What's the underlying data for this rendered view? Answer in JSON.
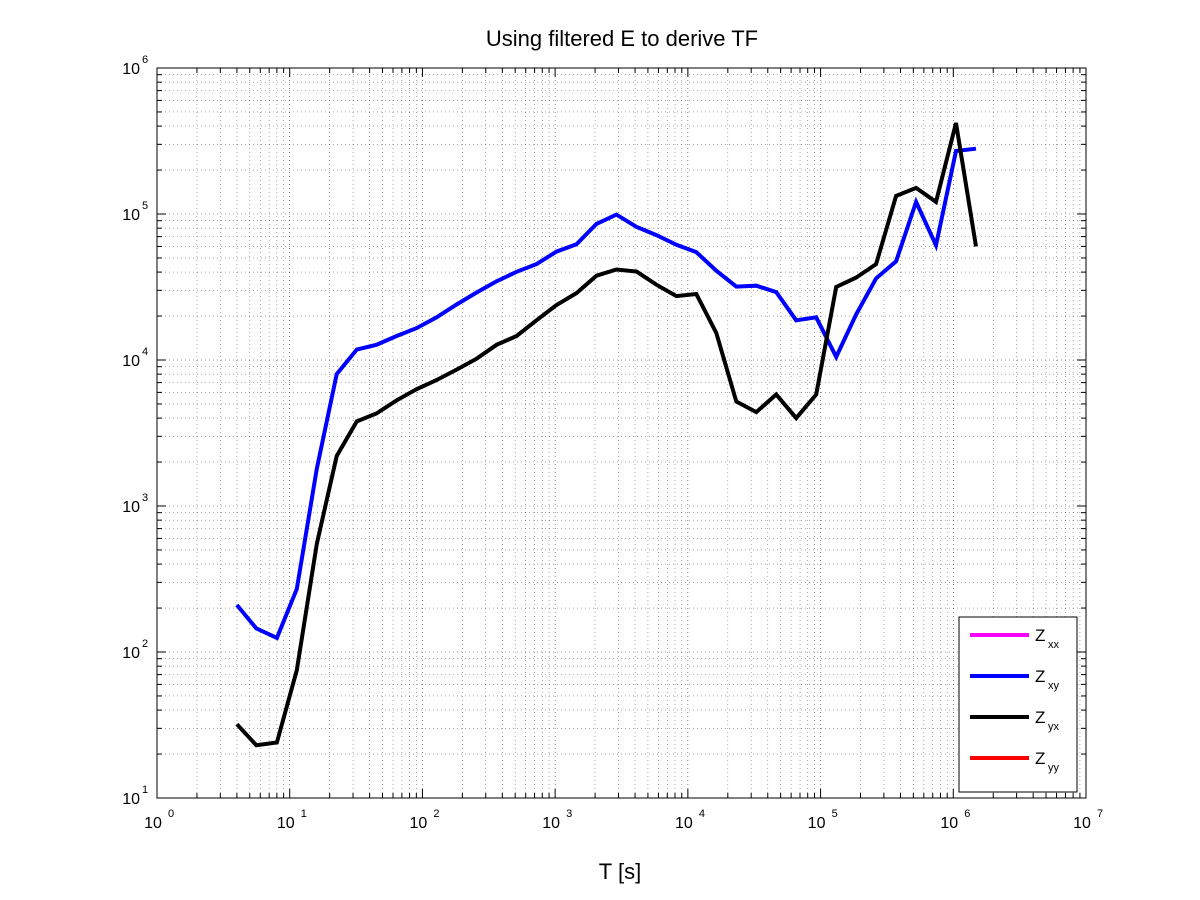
{
  "chart_data": {
    "type": "line",
    "title": "Using filtered E to derive TF",
    "xlabel": "T [s]",
    "ylabel": "",
    "xscale": "log",
    "yscale": "log",
    "xlim": [
      1,
      10000000
    ],
    "ylim": [
      10,
      1000000
    ],
    "grid": true,
    "legend_position": "bottom-right",
    "x_ticks": [
      {
        "base": "10",
        "exp": "0"
      },
      {
        "base": "10",
        "exp": "1"
      },
      {
        "base": "10",
        "exp": "2"
      },
      {
        "base": "10",
        "exp": "3"
      },
      {
        "base": "10",
        "exp": "4"
      },
      {
        "base": "10",
        "exp": "5"
      },
      {
        "base": "10",
        "exp": "6"
      },
      {
        "base": "10",
        "exp": "7"
      }
    ],
    "y_ticks": [
      {
        "base": "10",
        "exp": "1"
      },
      {
        "base": "10",
        "exp": "2"
      },
      {
        "base": "10",
        "exp": "3"
      },
      {
        "base": "10",
        "exp": "4"
      },
      {
        "base": "10",
        "exp": "5"
      },
      {
        "base": "10",
        "exp": "6"
      }
    ],
    "series": [
      {
        "name": "Z",
        "sub": "xx",
        "color": "#ff00ff",
        "x": [],
        "y": []
      },
      {
        "name": "Z",
        "sub": "xy",
        "color": "#0000ff",
        "x": [
          4,
          5.6,
          8,
          11.3,
          16,
          22.6,
          32,
          45,
          64,
          90,
          128,
          181,
          256,
          362,
          512,
          724,
          1024,
          1448,
          2048,
          2896,
          4096,
          5792,
          8192,
          11585,
          16384,
          23170,
          32768,
          46341,
          65536,
          92682,
          131072,
          185364,
          262144,
          370728,
          524288,
          741455,
          1048576,
          1482910
        ],
        "y": [
          210,
          145,
          125,
          270,
          1800,
          8000,
          11800,
          12700,
          14600,
          16500,
          19600,
          24000,
          29000,
          34600,
          40200,
          45400,
          55300,
          62000,
          85600,
          99100,
          81700,
          71700,
          61500,
          54800,
          40900,
          31800,
          32300,
          29200,
          18700,
          19600,
          10500,
          20500,
          36200,
          47400,
          121000,
          61000,
          270000,
          280000
        ]
      },
      {
        "name": "Z",
        "sub": "yx",
        "color": "#000000",
        "x": [
          4,
          5.6,
          8,
          11.3,
          16,
          22.6,
          32,
          45,
          64,
          90,
          128,
          181,
          256,
          362,
          512,
          724,
          1024,
          1448,
          2048,
          2896,
          4096,
          5792,
          8192,
          11585,
          16384,
          23170,
          32768,
          46341,
          65536,
          92682,
          131072,
          185364,
          262144,
          370728,
          524288,
          741455,
          1048576,
          1482910
        ],
        "y": [
          32,
          23,
          24,
          75,
          550,
          2200,
          3800,
          4300,
          5300,
          6300,
          7300,
          8600,
          10200,
          12700,
          14600,
          18700,
          23800,
          28700,
          37800,
          41700,
          40400,
          32800,
          27400,
          28300,
          15300,
          5200,
          4400,
          5800,
          4000,
          5800,
          31600,
          36700,
          45400,
          133000,
          151000,
          121000,
          420000,
          60000
        ]
      },
      {
        "name": "Z",
        "sub": "yy",
        "color": "#ff0000",
        "x": [],
        "y": []
      }
    ]
  }
}
